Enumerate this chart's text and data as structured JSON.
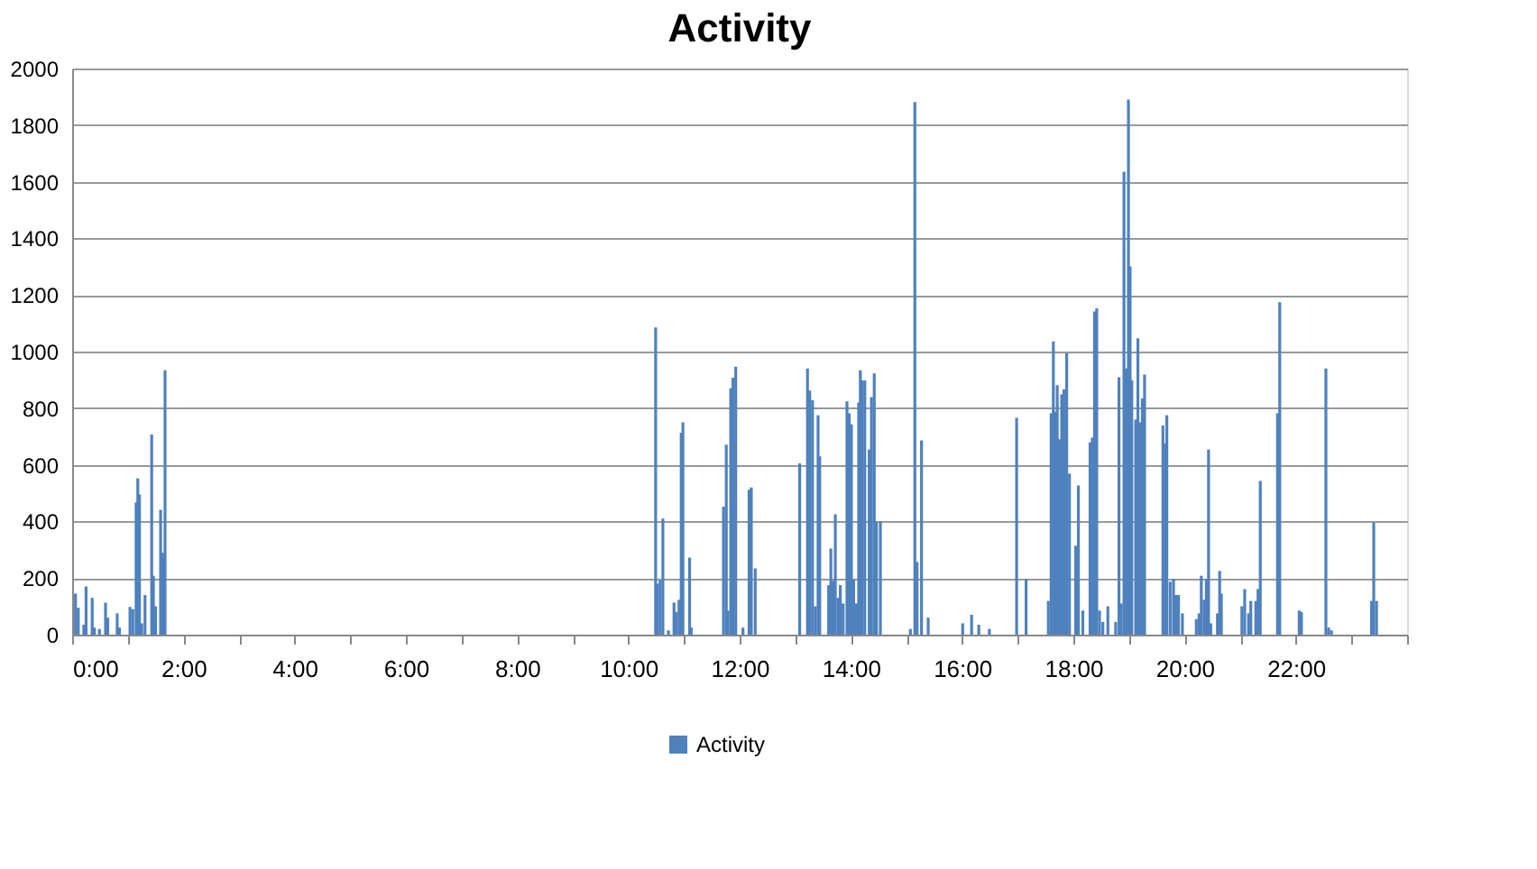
{
  "chart_data": {
    "type": "bar",
    "title": "Activity",
    "x": [
      0.06,
      0.11,
      0.21,
      0.25,
      0.36,
      0.4,
      0.49,
      0.6,
      0.64,
      0.81,
      0.85,
      1.04,
      1.09,
      1.15,
      1.18,
      1.21,
      1.25,
      1.31,
      1.43,
      1.46,
      1.5,
      1.59,
      1.63,
      1.67,
      10.49,
      10.52,
      10.57,
      10.62,
      10.72,
      10.82,
      10.86,
      10.91,
      10.95,
      10.98,
      11.1,
      11.13,
      11.71,
      11.76,
      11.79,
      11.84,
      11.88,
      11.93,
      12.06,
      12.17,
      12.21,
      12.28,
      13.08,
      13.22,
      13.26,
      13.31,
      13.36,
      13.41,
      13.44,
      13.6,
      13.64,
      13.68,
      13.72,
      13.77,
      13.81,
      13.86,
      13.93,
      13.97,
      14.01,
      14.05,
      14.1,
      14.14,
      14.17,
      14.2,
      14.25,
      14.33,
      14.37,
      14.42,
      14.46,
      14.53,
      15.07,
      15.15,
      15.19,
      15.27,
      15.39,
      16.01,
      16.17,
      16.3,
      16.49,
      16.98,
      17.15,
      17.55,
      17.6,
      17.64,
      17.67,
      17.71,
      17.75,
      17.79,
      17.83,
      17.88,
      17.93,
      18.04,
      18.09,
      18.17,
      18.3,
      18.34,
      18.38,
      18.42,
      18.47,
      18.53,
      18.62,
      18.76,
      18.82,
      18.86,
      18.91,
      18.95,
      18.99,
      19.02,
      19.05,
      19.12,
      19.16,
      19.21,
      19.24,
      19.28,
      19.61,
      19.65,
      19.68,
      19.74,
      19.8,
      19.84,
      19.89,
      19.96,
      20.21,
      20.26,
      20.3,
      20.35,
      20.39,
      20.43,
      20.47,
      20.59,
      20.63,
      20.66,
      21.03,
      21.08,
      21.15,
      21.19,
      21.28,
      21.32,
      21.36,
      21.67,
      21.71,
      22.06,
      22.1,
      22.54,
      22.59,
      22.64,
      23.36,
      23.4,
      23.45
    ],
    "series": [
      {
        "name": "Activity",
        "color": "#4f81bd",
        "values": [
          145,
          95,
          35,
          170,
          130,
          25,
          20,
          113,
          60,
          75,
          25,
          98,
          90,
          467,
          552,
          495,
          40,
          140,
          707,
          208,
          100,
          441,
          289,
          934,
          1085,
          180,
          192,
          410,
          15,
          113,
          80,
          123,
          713,
          750,
          272,
          25,
          452,
          671,
          85,
          870,
          908,
          947,
          25,
          512,
          520,
          234,
          605,
          940,
          862,
          828,
          100,
          775,
          630,
          175,
          304,
          190,
          425,
          130,
          175,
          110,
          824,
          782,
          743,
          195,
          110,
          820,
          934,
          898,
          898,
          654,
          839,
          923,
          400,
          400,
          20,
          1881,
          257,
          686,
          60,
          40,
          70,
          35,
          20,
          766,
          197,
          119,
          782,
          1036,
          787,
          881,
          690,
          849,
          866,
          994,
          569,
          314,
          527,
          85,
          679,
          696,
          1142,
          1153,
          85,
          45,
          100,
          45,
          909,
          110,
          1635,
          940,
          1890,
          1301,
          898,
          760,
          1047,
          750,
          834,
          919,
          739,
          675,
          775,
          187,
          197,
          140,
          140,
          75,
          55,
          75,
          208,
          123,
          197,
          654,
          40,
          75,
          225,
          145,
          100,
          161,
          75,
          119,
          119,
          161,
          543,
          782,
          1174,
          85,
          80,
          940,
          25,
          15,
          119,
          397,
          119
        ]
      }
    ],
    "xlim": [
      0,
      24
    ],
    "xticks": [
      {
        "value": 0,
        "label": "0:00"
      },
      {
        "value": 1,
        "label": null
      },
      {
        "value": 2,
        "label": "2:00"
      },
      {
        "value": 3,
        "label": null
      },
      {
        "value": 4,
        "label": "4:00"
      },
      {
        "value": 5,
        "label": null
      },
      {
        "value": 6,
        "label": "6:00"
      },
      {
        "value": 7,
        "label": null
      },
      {
        "value": 8,
        "label": "8:00"
      },
      {
        "value": 9,
        "label": null
      },
      {
        "value": 10,
        "label": "10:00"
      },
      {
        "value": 11,
        "label": null
      },
      {
        "value": 12,
        "label": "12:00"
      },
      {
        "value": 13,
        "label": null
      },
      {
        "value": 14,
        "label": "14:00"
      },
      {
        "value": 15,
        "label": null
      },
      {
        "value": 16,
        "label": "16:00"
      },
      {
        "value": 17,
        "label": null
      },
      {
        "value": 18,
        "label": "18:00"
      },
      {
        "value": 19,
        "label": null
      },
      {
        "value": 20,
        "label": "20:00"
      },
      {
        "value": 21,
        "label": null
      },
      {
        "value": 22,
        "label": "22:00"
      },
      {
        "value": 23,
        "label": null
      },
      {
        "value": 24,
        "label": null
      }
    ],
    "ylim": [
      0,
      2000
    ],
    "yticks": [
      0,
      200,
      400,
      600,
      800,
      1000,
      1200,
      1400,
      1600,
      1800,
      2000
    ],
    "grid": "y",
    "legend": "bottom"
  }
}
